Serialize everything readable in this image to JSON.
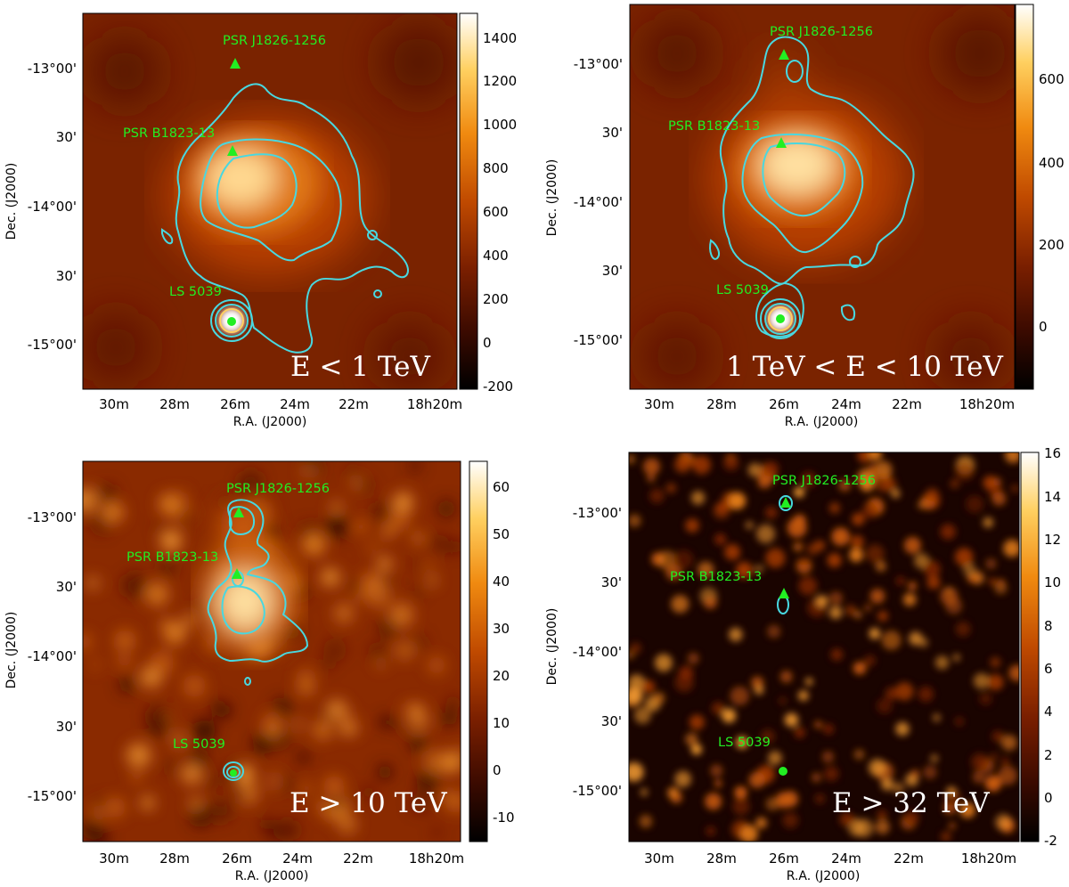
{
  "colors": {
    "contour": "#48d8e0",
    "marker": "#22ee22",
    "colormap": [
      "#000000",
      "#3a0a00",
      "#7a1f00",
      "#c04a00",
      "#f08a10",
      "#ffd060",
      "#ffffff"
    ]
  },
  "axis_labels": {
    "x": "R.A. (J2000)",
    "y": "Dec. (J2000)"
  },
  "x_ticks": [
    "30m",
    "28m",
    "26m",
    "24m",
    "22m",
    "18h20m"
  ],
  "y_ticks": [
    "-13°00'",
    "30'",
    "-14°00'",
    "30'",
    "-15°00'"
  ],
  "sources": {
    "psr_j": "PSR J1826-1256",
    "psr_b": "PSR B1823-13",
    "ls": "LS 5039"
  },
  "panels": [
    {
      "id": "p1",
      "label": "E < 1 TeV",
      "colorbar_ticks": [
        "1400",
        "1200",
        "1000",
        "800",
        "600",
        "400",
        "200",
        "0",
        "-200"
      ]
    },
    {
      "id": "p2",
      "label": "1 TeV < E < 10 TeV",
      "colorbar_ticks": [
        "600",
        "400",
        "200",
        "0"
      ]
    },
    {
      "id": "p3",
      "label": "E > 10 TeV",
      "colorbar_ticks": [
        "60",
        "50",
        "40",
        "30",
        "20",
        "10",
        "0",
        "-10"
      ]
    },
    {
      "id": "p4",
      "label": "E > 32 TeV",
      "colorbar_ticks": [
        "16",
        "14",
        "12",
        "10",
        "8",
        "6",
        "4",
        "2",
        "0",
        "-2"
      ]
    }
  ]
}
